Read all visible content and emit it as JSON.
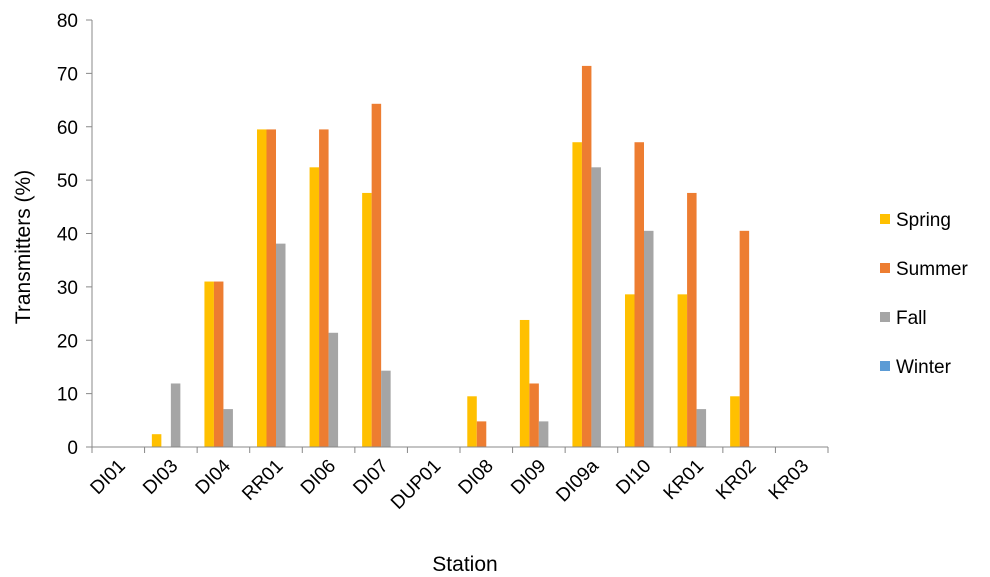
{
  "chart_data": {
    "type": "bar",
    "xlabel": "Station",
    "ylabel": "Transmitters (%)",
    "ylim": [
      0,
      80
    ],
    "yticks": [
      0,
      10,
      20,
      30,
      40,
      50,
      60,
      70,
      80
    ],
    "grid": false,
    "legend_position": "right",
    "categories": [
      "DI01",
      "DI03",
      "DI04",
      "RR01",
      "DI06",
      "DI07",
      "DUP01",
      "DI08",
      "DI09",
      "DI09a",
      "DI10",
      "KR01",
      "KR02",
      "KR03"
    ],
    "series": [
      {
        "name": "Spring",
        "color": "#FFC000",
        "values": [
          0,
          2.4,
          31,
          59.5,
          52.4,
          47.6,
          0,
          9.5,
          23.8,
          57.1,
          28.6,
          28.6,
          9.5,
          0
        ]
      },
      {
        "name": "Summer",
        "color": "#ED7D31",
        "values": [
          0,
          0,
          31,
          59.5,
          59.5,
          64.3,
          0,
          4.8,
          11.9,
          71.4,
          57.1,
          47.6,
          40.5,
          0
        ]
      },
      {
        "name": "Fall",
        "color": "#A5A5A5",
        "values": [
          0,
          11.9,
          7.1,
          38.1,
          21.4,
          14.3,
          0,
          0,
          4.8,
          52.4,
          40.5,
          7.1,
          0,
          0
        ]
      },
      {
        "name": "Winter",
        "color": "#5B9BD5",
        "values": [
          0,
          0,
          0,
          0,
          0,
          0,
          0,
          0,
          0,
          0,
          0,
          0,
          0,
          0
        ]
      }
    ]
  }
}
